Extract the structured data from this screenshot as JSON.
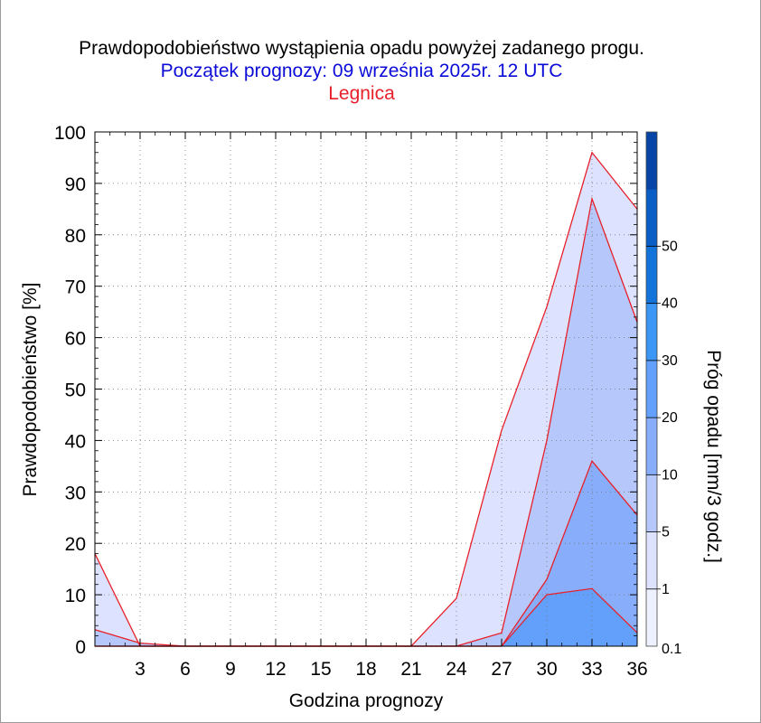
{
  "title": "Prawdopodobieństwo wystąpienia opadu powyżej zadanego progu.",
  "subtitle": "Początek prognozy: 09 września 2025r. 12 UTC",
  "location": "Legnica",
  "colors": {
    "title": "#000000",
    "subtitle": "#0b0bd8",
    "location": "#e8202a",
    "outline": "#e8202a"
  },
  "chart_data": {
    "type": "area",
    "xlabel": "Godzina prognozy",
    "ylabel": "Prawdopodobieństwo [%]",
    "xlim": [
      0,
      36
    ],
    "ylim": [
      0,
      100
    ],
    "x": [
      0,
      3,
      6,
      9,
      12,
      15,
      18,
      21,
      24,
      27,
      30,
      33,
      36
    ],
    "x_ticks": [
      "3",
      "6",
      "9",
      "12",
      "15",
      "18",
      "21",
      "24",
      "27",
      "30",
      "33",
      "36"
    ],
    "y_ticks": [
      "0",
      "10",
      "20",
      "30",
      "40",
      "50",
      "60",
      "70",
      "80",
      "90",
      "100"
    ],
    "series": [
      {
        "threshold": "0.1",
        "color": "#dde3ff",
        "values": [
          18,
          0,
          0,
          0,
          0,
          0,
          0,
          0,
          9.3,
          42,
          66,
          96,
          85
        ]
      },
      {
        "threshold": "1",
        "color": "#b6c8fb",
        "values": [
          3.2,
          0.6,
          0,
          0,
          0,
          0,
          0,
          0,
          0,
          2.6,
          40,
          87,
          63
        ]
      },
      {
        "threshold": "5",
        "color": "#87adfb",
        "values": [
          0,
          0,
          0,
          0,
          0,
          0,
          0,
          0,
          0,
          0,
          13,
          36,
          25.5
        ]
      },
      {
        "threshold": "10",
        "color": "#63a0fb",
        "values": [
          0,
          0,
          0,
          0,
          0,
          0,
          0,
          0,
          0,
          0,
          10,
          11.2,
          2.6
        ]
      }
    ],
    "colorbar": {
      "label": "Próg opadu [mm/3 godz.]",
      "ticks": [
        "0.1",
        "1",
        "5",
        "10",
        "20",
        "30",
        "40",
        "50"
      ],
      "colors": [
        "#edf1ff",
        "#dde3ff",
        "#b6c8fb",
        "#87adfb",
        "#63a0fb",
        "#3c96f5",
        "#1273db",
        "#0a5dc4",
        "#0644a6"
      ]
    },
    "grid": true,
    "legend": "colorbar-right"
  }
}
